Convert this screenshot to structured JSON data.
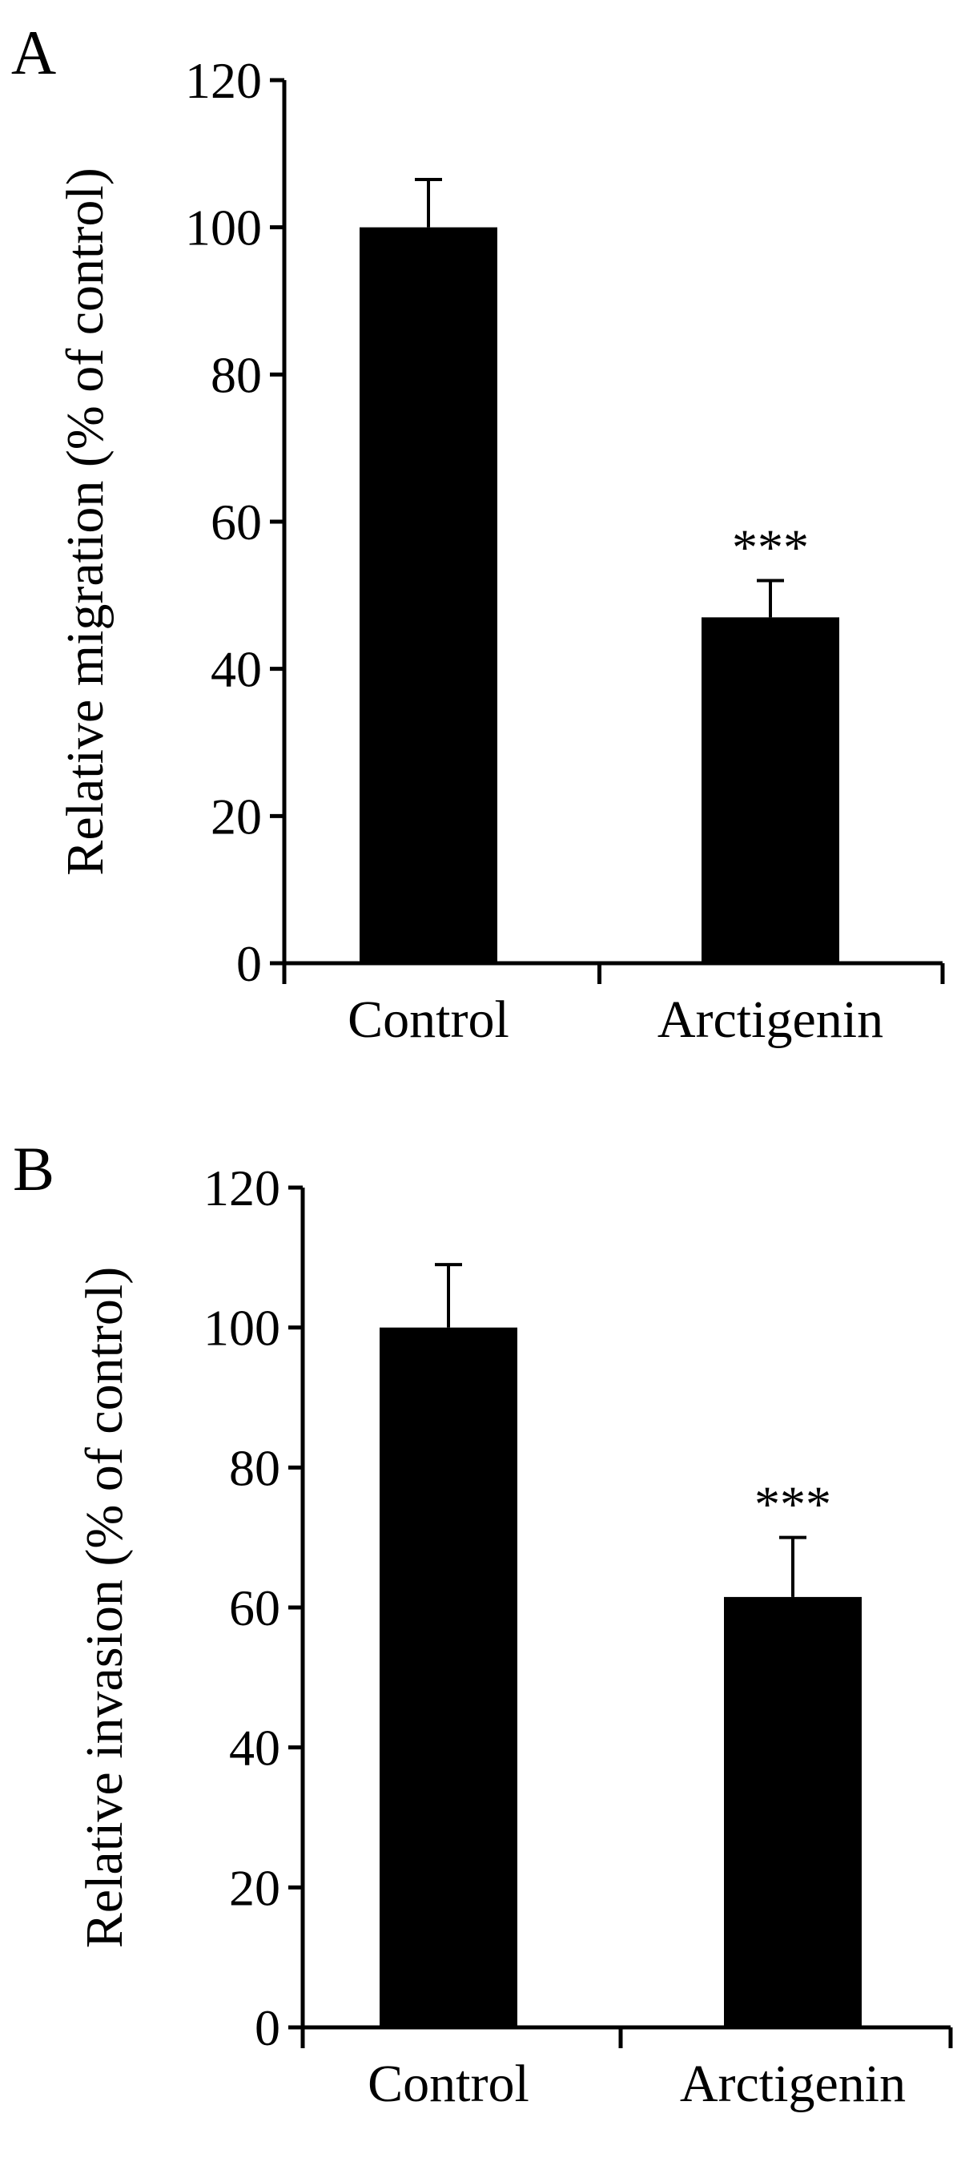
{
  "chart_data": [
    {
      "panel_label": "A",
      "type": "bar",
      "categories": [
        "Control",
        "Arctigenin"
      ],
      "values": [
        100,
        47
      ],
      "errors": [
        6.5,
        5
      ],
      "annotations": [
        "",
        "***"
      ],
      "ylabel": "Relative migration (% of control)",
      "xlabel": "",
      "ylim": [
        0,
        120
      ],
      "yticks": [
        "0",
        "20",
        "40",
        "60",
        "80",
        "100",
        "120"
      ],
      "bar_color": "#000000",
      "grid": false,
      "legend": false
    },
    {
      "panel_label": "B",
      "type": "bar",
      "categories": [
        "Control",
        "Arctigenin"
      ],
      "values": [
        100,
        61.5
      ],
      "errors": [
        9,
        8.5
      ],
      "annotations": [
        "",
        "***"
      ],
      "ylabel": "Relative invasion (% of control)",
      "xlabel": "",
      "ylim": [
        0,
        120
      ],
      "yticks": [
        "0",
        "20",
        "40",
        "60",
        "80",
        "100",
        "120"
      ],
      "bar_color": "#000000",
      "grid": false,
      "legend": false
    }
  ]
}
